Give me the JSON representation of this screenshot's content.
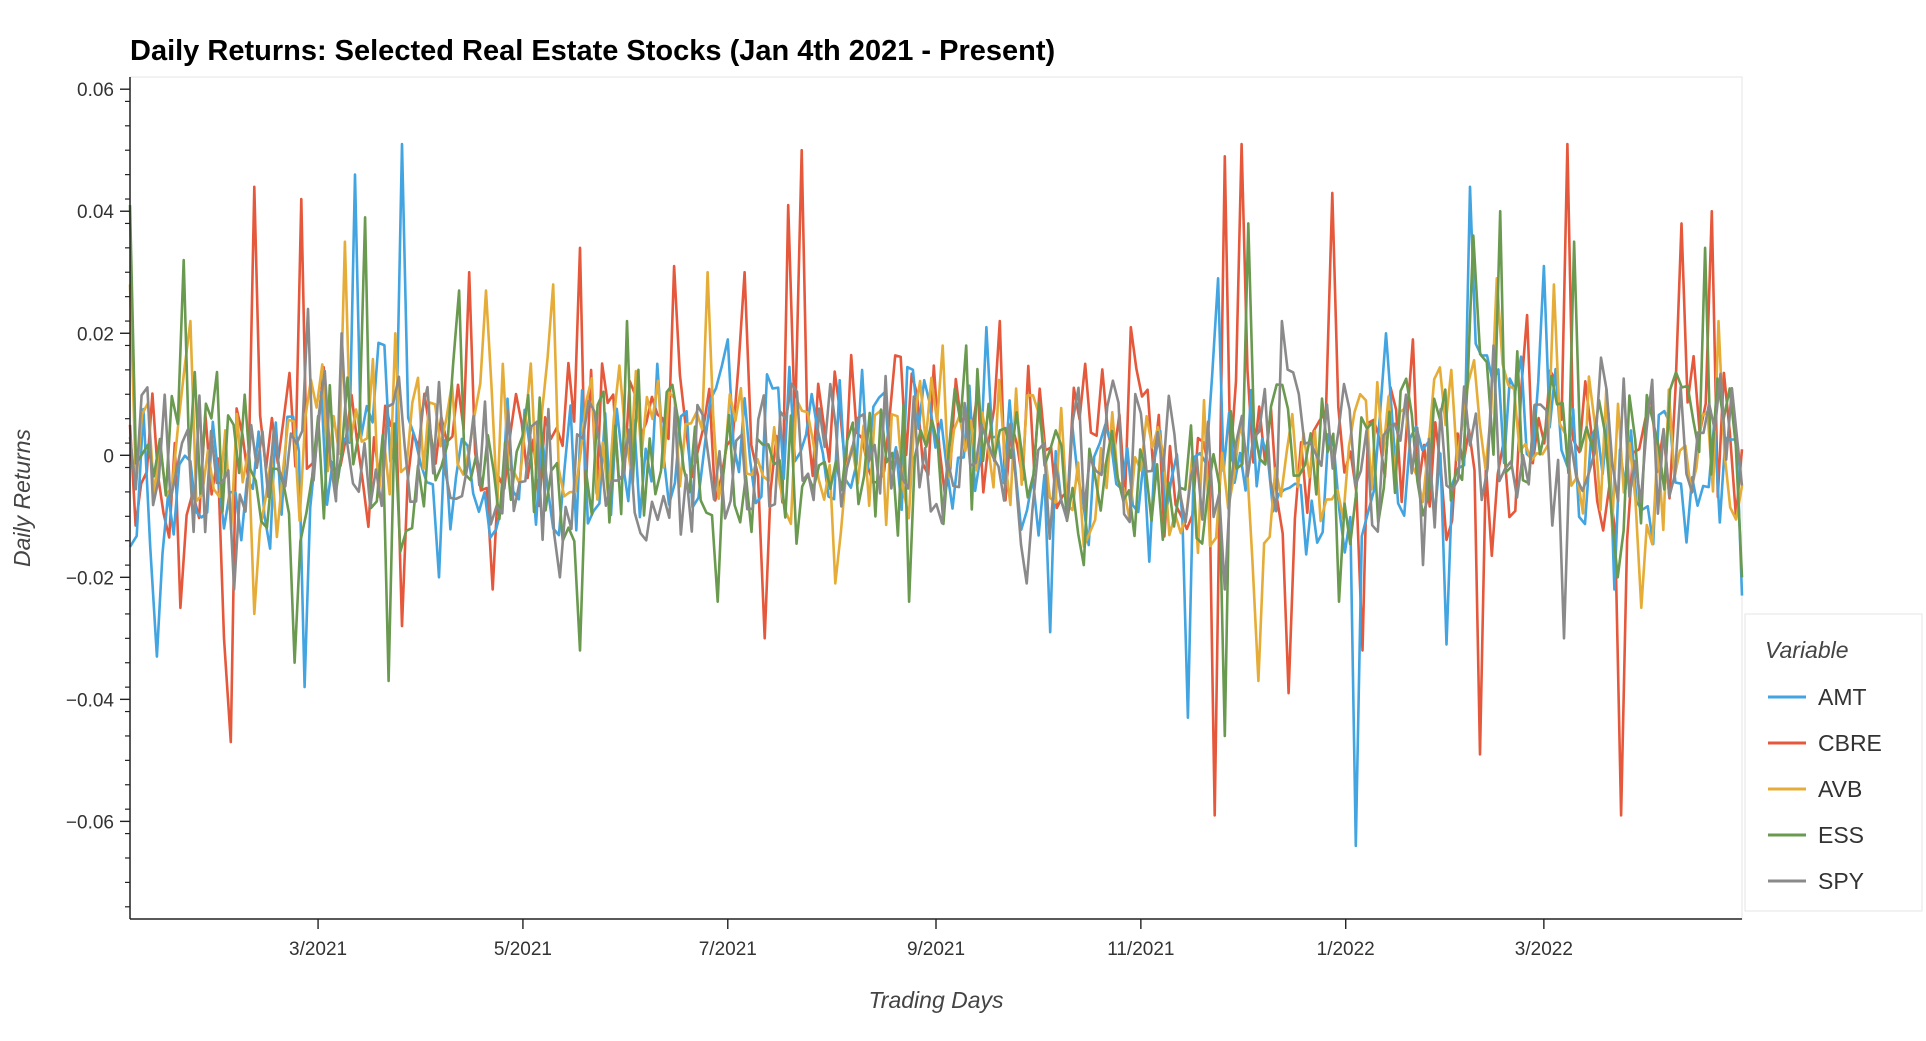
{
  "chart_data": {
    "type": "line",
    "title": "Daily Returns: Selected Real Estate Stocks (Jan 4th 2021 - Present)",
    "xlabel": "Trading Days",
    "ylabel": "Daily Returns",
    "xlim": [
      "2021-01-04",
      "2022-04-29"
    ],
    "ylim": [
      -0.076,
      0.062
    ],
    "grid": false,
    "legend": {
      "title": "Variable",
      "placement": "outside-right"
    },
    "x_ticks": [
      {
        "date": "2021-03-01",
        "label": "3/2021"
      },
      {
        "date": "2021-05-01",
        "label": "5/2021"
      },
      {
        "date": "2021-07-01",
        "label": "7/2021"
      },
      {
        "date": "2021-09-01",
        "label": "9/2021"
      },
      {
        "date": "2021-11-01",
        "label": "11/2021"
      },
      {
        "date": "2022-01-01",
        "label": "1/2022"
      },
      {
        "date": "2022-03-01",
        "label": "3/2022"
      }
    ],
    "y_ticks": [
      {
        "value": -0.06,
        "label": "−0.06"
      },
      {
        "value": -0.04,
        "label": "−0.04"
      },
      {
        "value": -0.02,
        "label": "−0.02"
      },
      {
        "value": 0,
        "label": "0"
      },
      {
        "value": 0.02,
        "label": "0.02"
      },
      {
        "value": 0.04,
        "label": "0.04"
      },
      {
        "value": 0.06,
        "label": "0.06"
      }
    ],
    "series": [
      {
        "name": "CBRE",
        "color": "#e5583b",
        "x": [
          "2021-01-04",
          "2021-01-19",
          "2021-02-01",
          "2021-02-03",
          "2021-02-10",
          "2021-02-24",
          "2021-03-26",
          "2021-04-15",
          "2021-04-22",
          "2021-05-18",
          "2021-06-15",
          "2021-07-06",
          "2021-07-12",
          "2021-07-19",
          "2021-07-23",
          "2021-09-20",
          "2021-10-29",
          "2021-11-23",
          "2021-11-26",
          "2021-12-01",
          "2021-12-15",
          "2021-12-28",
          "2022-01-06",
          "2022-01-21",
          "2022-02-10",
          "2022-02-24",
          "2022-03-08",
          "2022-03-24",
          "2022-04-11",
          "2022-04-20",
          "2022-04-29"
        ],
        "y": [
          0.005,
          -0.025,
          -0.03,
          -0.047,
          0.044,
          0.042,
          -0.028,
          0.03,
          -0.022,
          0.034,
          0.031,
          0.03,
          -0.03,
          0.041,
          0.05,
          0.022,
          0.021,
          -0.059,
          0.049,
          0.051,
          -0.039,
          0.043,
          -0.032,
          0.019,
          -0.049,
          0.023,
          0.051,
          -0.059,
          0.038,
          0.04,
          0.001
        ]
      },
      {
        "name": "AMT",
        "color": "#42a4e0",
        "x": [
          "2021-01-04",
          "2021-01-12",
          "2021-02-01",
          "2021-02-25",
          "2021-03-12",
          "2021-03-26",
          "2021-04-06",
          "2021-05-10",
          "2021-06-10",
          "2021-07-01",
          "2021-08-10",
          "2021-09-16",
          "2021-10-05",
          "2021-11-15",
          "2021-11-24",
          "2022-01-04",
          "2022-01-13",
          "2022-01-31",
          "2022-02-07",
          "2022-03-01",
          "2022-03-22",
          "2022-04-29"
        ],
        "y": [
          -0.015,
          -0.033,
          -0.012,
          -0.038,
          0.046,
          0.051,
          -0.02,
          -0.012,
          0.015,
          0.019,
          0.014,
          0.021,
          -0.029,
          -0.043,
          0.029,
          -0.064,
          0.02,
          -0.031,
          0.044,
          0.031,
          -0.022,
          -0.023
        ]
      },
      {
        "name": "AVB",
        "color": "#e5ac37",
        "x": [
          "2021-01-04",
          "2021-01-22",
          "2021-02-10",
          "2021-03-09",
          "2021-03-24",
          "2021-04-20",
          "2021-05-10",
          "2021-06-25",
          "2021-08-02",
          "2021-09-03",
          "2021-10-15",
          "2021-11-18",
          "2021-12-06",
          "2022-01-07",
          "2022-02-15",
          "2022-03-04",
          "2022-03-30",
          "2022-04-22",
          "2022-04-29"
        ],
        "y": [
          0.028,
          0.022,
          -0.026,
          0.035,
          0.02,
          0.027,
          0.028,
          0.03,
          -0.021,
          0.018,
          -0.015,
          -0.016,
          -0.037,
          0.009,
          0.029,
          0.028,
          -0.025,
          0.022,
          -0.005
        ]
      },
      {
        "name": "ESS",
        "color": "#6a9950",
        "x": [
          "2021-01-04",
          "2021-01-20",
          "2021-02-22",
          "2021-03-15",
          "2021-03-22",
          "2021-04-12",
          "2021-05-18",
          "2021-06-01",
          "2021-06-28",
          "2021-08-24",
          "2021-09-10",
          "2021-10-15",
          "2021-11-26",
          "2021-12-03",
          "2021-12-30",
          "2022-02-08",
          "2022-02-16",
          "2022-03-10",
          "2022-03-23",
          "2022-04-18",
          "2022-04-29"
        ],
        "y": [
          0.041,
          0.032,
          -0.034,
          0.039,
          -0.037,
          0.027,
          -0.032,
          0.022,
          -0.024,
          -0.024,
          0.018,
          -0.018,
          -0.046,
          0.038,
          -0.024,
          0.036,
          0.04,
          0.035,
          -0.02,
          0.034,
          -0.02
        ]
      },
      {
        "name": "SPY",
        "color": "#8a8a8a",
        "x": [
          "2021-01-04",
          "2021-02-04",
          "2021-02-26",
          "2021-03-08",
          "2021-04-06",
          "2021-05-12",
          "2021-06-17",
          "2021-08-17",
          "2021-09-28",
          "2021-10-22",
          "2021-11-26",
          "2021-12-13",
          "2022-01-24",
          "2022-02-14",
          "2022-03-07",
          "2022-03-18",
          "2022-04-26",
          "2022-04-29"
        ],
        "y": [
          0.003,
          -0.022,
          0.024,
          0.02,
          0.012,
          -0.02,
          -0.013,
          0.013,
          -0.021,
          0.008,
          -0.022,
          0.022,
          -0.018,
          0.018,
          -0.03,
          0.016,
          0.011,
          -0.005
        ]
      }
    ]
  }
}
